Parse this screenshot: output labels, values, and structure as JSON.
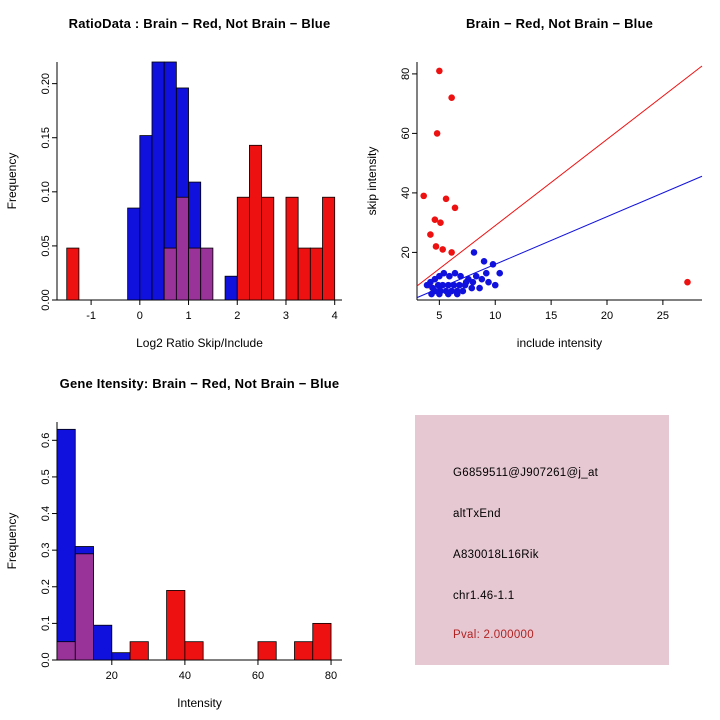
{
  "figure": {
    "background": "#ffffff"
  },
  "colors": {
    "red": "#ee1111",
    "blue": "#1111dd",
    "purple": "#993399",
    "axis": "#000000"
  },
  "panels": {
    "info": {
      "bg": "#e6c8d2",
      "pval_color": "#b22222",
      "lines": [
        "G6859511@J907261@j_at",
        "altTxEnd",
        "A830018L16Rik",
        "chr1.46-1.1"
      ],
      "pval": "Pval: 2.000000"
    }
  },
  "chart_data": [
    {
      "id": "ratio-hist",
      "type": "bar",
      "title": "RatioData : Brain − Red, Not Brain − Blue",
      "xlabel": "Log2 Ratio Skip/Include",
      "ylabel": "Frequency",
      "xlim": [
        -1.7,
        4.15
      ],
      "ylim": [
        0,
        0.22
      ],
      "xticks": [
        -1,
        0,
        1,
        2,
        3,
        4
      ],
      "xtick_labels": [
        "-1",
        "0",
        "1",
        "2",
        "3",
        "4"
      ],
      "yticks": [
        0,
        0.05,
        0.1,
        0.15,
        0.2
      ],
      "ytick_labels": [
        "0.00",
        "0.05",
        "0.10",
        "0.15",
        "0.20"
      ],
      "grid": false,
      "series": [
        {
          "name": "not-brain-blue",
          "color": "blue",
          "bins": [
            [
              -0.25,
              0,
              0.085
            ],
            [
              0,
              0.25,
              0.152
            ],
            [
              0.25,
              0.5,
              0.22
            ],
            [
              0.5,
              0.75,
              0.22
            ],
            [
              0.75,
              1,
              0.196
            ],
            [
              1,
              1.25,
              0.109
            ],
            [
              1.75,
              2,
              0.022
            ]
          ]
        },
        {
          "name": "brain-red",
          "color": "red",
          "bins": [
            [
              -1.5,
              -1.25,
              0.048
            ],
            [
              2,
              2.25,
              0.095
            ],
            [
              2.25,
              2.5,
              0.143
            ],
            [
              2.5,
              2.75,
              0.095
            ],
            [
              3,
              3.25,
              0.095
            ],
            [
              3.25,
              3.5,
              0.048
            ],
            [
              3.5,
              3.75,
              0.048
            ],
            [
              3.75,
              4,
              0.095
            ]
          ]
        },
        {
          "name": "overlap-purple",
          "color": "purple",
          "bins": [
            [
              0.5,
              0.75,
              0.048
            ],
            [
              0.75,
              1,
              0.095
            ],
            [
              1,
              1.25,
              0.048
            ],
            [
              1.25,
              1.5,
              0.048
            ]
          ]
        }
      ]
    },
    {
      "id": "intensity-scatter",
      "type": "scatter",
      "title": "Brain − Red, Not Brain − Blue",
      "xlabel": "include intensity",
      "ylabel": "skip intensity",
      "xlim": [
        3,
        28.5
      ],
      "ylim": [
        4,
        84
      ],
      "xticks": [
        5,
        10,
        15,
        20,
        25
      ],
      "xtick_labels": [
        "5",
        "10",
        "15",
        "20",
        "25"
      ],
      "yticks": [
        20,
        40,
        60,
        80
      ],
      "ytick_labels": [
        "20",
        "40",
        "60",
        "80"
      ],
      "grid": false,
      "series": [
        {
          "name": "brain-red",
          "color": "red",
          "points": [
            [
              5.0,
              81
            ],
            [
              6.1,
              72
            ],
            [
              4.8,
              60
            ],
            [
              3.6,
              39
            ],
            [
              5.6,
              38
            ],
            [
              6.4,
              35
            ],
            [
              4.6,
              31
            ],
            [
              5.1,
              30
            ],
            [
              4.2,
              26
            ],
            [
              4.7,
              22
            ],
            [
              5.3,
              21
            ],
            [
              6.1,
              20
            ],
            [
              4.1,
              9
            ],
            [
              27.2,
              10
            ]
          ]
        },
        {
          "name": "not-brain-blue",
          "color": "blue",
          "points": [
            [
              8.1,
              20
            ],
            [
              9.0,
              17
            ],
            [
              9.8,
              16
            ],
            [
              10.4,
              13
            ],
            [
              9.2,
              13
            ],
            [
              8.3,
              12
            ],
            [
              7.6,
              11
            ],
            [
              6.9,
              12
            ],
            [
              6.4,
              13
            ],
            [
              5.9,
              12
            ],
            [
              5.4,
              13
            ],
            [
              5.0,
              12
            ],
            [
              4.6,
              11
            ],
            [
              4.2,
              10
            ],
            [
              3.9,
              9
            ],
            [
              4.4,
              8
            ],
            [
              4.9,
              9
            ],
            [
              5.3,
              9
            ],
            [
              5.8,
              9
            ],
            [
              6.3,
              9
            ],
            [
              6.8,
              9
            ],
            [
              7.3,
              9
            ],
            [
              7.9,
              8
            ],
            [
              8.6,
              8
            ],
            [
              5.1,
              7
            ],
            [
              5.6,
              7
            ],
            [
              6.1,
              7
            ],
            [
              6.6,
              7
            ],
            [
              7.1,
              7
            ],
            [
              4.6,
              7
            ],
            [
              4.3,
              6
            ],
            [
              5.0,
              6
            ],
            [
              5.8,
              6
            ],
            [
              6.6,
              6
            ],
            [
              7.4,
              10
            ],
            [
              8.0,
              10
            ],
            [
              8.8,
              11
            ],
            [
              9.4,
              10
            ],
            [
              10.0,
              9
            ]
          ]
        }
      ],
      "lines": [
        {
          "name": "brain-fit-line",
          "color": "red",
          "slope": 2.9,
          "intercept": 0
        },
        {
          "name": "not-brain-fit-line",
          "color": "blue",
          "slope": 1.6,
          "intercept": 0
        }
      ]
    },
    {
      "id": "gene-hist",
      "type": "bar",
      "title": "Gene Itensity: Brain − Red, Not Brain − Blue",
      "xlabel": "Intensity",
      "ylabel": "Frequency",
      "xlim": [
        5,
        83
      ],
      "ylim": [
        0,
        0.65
      ],
      "xticks": [
        20,
        40,
        60,
        80
      ],
      "xtick_labels": [
        "20",
        "40",
        "60",
        "80"
      ],
      "yticks": [
        0,
        0.1,
        0.2,
        0.3,
        0.4,
        0.5,
        0.6
      ],
      "ytick_labels": [
        "0.0",
        "0.1",
        "0.2",
        "0.3",
        "0.4",
        "0.5",
        "0.6"
      ],
      "grid": false,
      "series": [
        {
          "name": "not-brain-blue",
          "color": "blue",
          "bins": [
            [
              5,
              10,
              0.63
            ],
            [
              10,
              15,
              0.31
            ],
            [
              15,
              20,
              0.095
            ],
            [
              20,
              25,
              0.02
            ]
          ]
        },
        {
          "name": "brain-red",
          "color": "red",
          "bins": [
            [
              25,
              30,
              0.05
            ],
            [
              35,
              40,
              0.19
            ],
            [
              40,
              45,
              0.05
            ],
            [
              60,
              65,
              0.05
            ],
            [
              70,
              75,
              0.05
            ],
            [
              75,
              80,
              0.1
            ]
          ]
        },
        {
          "name": "overlap-purple",
          "color": "purple",
          "bins": [
            [
              5,
              10,
              0.05
            ],
            [
              10,
              15,
              0.29
            ]
          ]
        }
      ]
    }
  ]
}
